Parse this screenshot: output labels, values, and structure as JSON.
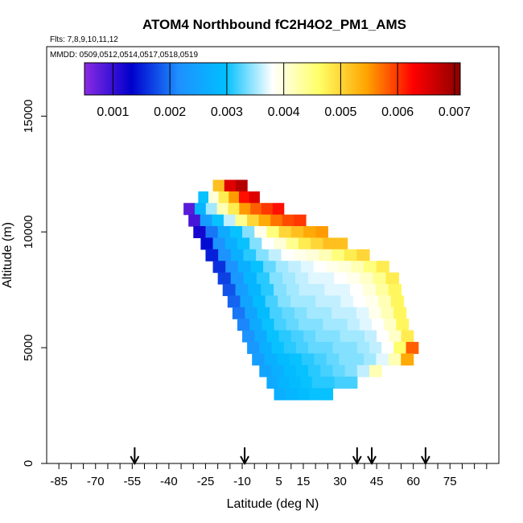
{
  "chart_data": {
    "type": "heatmap",
    "title": "ATOM4 Northbound fC2H4O2_PM1_AMS",
    "subtitle_flights": "Flts: 7,8,9,10,11,12",
    "subtitle_dates": "MMDD: 0509,0512,0514,0517,0518,0519",
    "xlabel": "Latitude (deg N)",
    "ylabel": "Altitude (m)",
    "xlim": [
      -90,
      95
    ],
    "ylim": [
      0,
      18000
    ],
    "x_ticks": [
      -85,
      -70,
      -55,
      -40,
      -25,
      -10,
      5,
      15,
      30,
      45,
      60,
      75
    ],
    "y_ticks": [
      0,
      5000,
      10000,
      15000
    ],
    "colorbar": {
      "min": 0.0005,
      "max": 0.0071,
      "ticks": [
        "0.001",
        "0.002",
        "0.003",
        "0.004",
        "0.005",
        "0.006",
        "0.007"
      ],
      "tick_values": [
        0.001,
        0.002,
        0.003,
        0.004,
        0.005,
        0.006,
        0.007
      ],
      "colors": [
        "#8a2be2",
        "#0000cd",
        "#1e90ff",
        "#00bfff",
        "#ffffff",
        "#ffff66",
        "#ffa500",
        "#ff0000",
        "#8b0000"
      ]
    },
    "arrow_latitudes": [
      -54,
      -9,
      37,
      43,
      65
    ],
    "rows": [
      {
        "alt": 12000,
        "lat_start": -22,
        "lat_end": -8,
        "values": [
          0.0052,
          0.0065,
          0.0068
        ]
      },
      {
        "alt": 11500,
        "lat_start": -28,
        "lat_end": -3,
        "values": [
          0.003,
          0.004,
          0.0048,
          0.0055,
          0.0062,
          0.0065
        ]
      },
      {
        "alt": 11000,
        "lat_start": -34,
        "lat_end": 7,
        "values": [
          0.0008,
          0.0028,
          0.0035,
          0.0042,
          0.0048,
          0.0055,
          0.0058,
          0.006,
          0.0062
        ]
      },
      {
        "alt": 10500,
        "lat_start": -32,
        "lat_end": 16,
        "values": [
          0.0009,
          0.0024,
          0.003,
          0.0036,
          0.0044,
          0.005,
          0.0054,
          0.0057,
          0.0059,
          0.006
        ]
      },
      {
        "alt": 10000,
        "lat_start": -30,
        "lat_end": 25,
        "values": [
          0.0012,
          0.002,
          0.0026,
          0.003,
          0.0034,
          0.0039,
          0.0045,
          0.005,
          0.0052,
          0.0054,
          0.0055
        ]
      },
      {
        "alt": 9500,
        "lat_start": -27,
        "lat_end": 33,
        "values": [
          0.0014,
          0.0022,
          0.0027,
          0.003,
          0.0034,
          0.0038,
          0.004,
          0.0044,
          0.0048,
          0.005,
          0.0052,
          0.0052
        ]
      },
      {
        "alt": 9000,
        "lat_start": -25,
        "lat_end": 42,
        "values": [
          0.0015,
          0.0022,
          0.0027,
          0.0031,
          0.0034,
          0.0036,
          0.0038,
          0.0039,
          0.004,
          0.0042,
          0.0045,
          0.0048,
          0.005
        ]
      },
      {
        "alt": 8500,
        "lat_start": -22,
        "lat_end": 50,
        "values": [
          0.0016,
          0.0022,
          0.0027,
          0.003,
          0.0033,
          0.0035,
          0.0036,
          0.0037,
          0.0038,
          0.0039,
          0.004,
          0.0042,
          0.0045,
          0.0048
        ]
      },
      {
        "alt": 8000,
        "lat_start": -20,
        "lat_end": 54,
        "values": [
          0.0017,
          0.0023,
          0.0028,
          0.0031,
          0.0034,
          0.0035,
          0.0036,
          0.0037,
          0.0037,
          0.0038,
          0.0039,
          0.0041,
          0.0044,
          0.0048
        ]
      },
      {
        "alt": 7500,
        "lat_start": -18,
        "lat_end": 55,
        "values": [
          0.0018,
          0.0024,
          0.0028,
          0.0031,
          0.0034,
          0.0035,
          0.0036,
          0.0036,
          0.0037,
          0.0037,
          0.0038,
          0.004,
          0.0043,
          0.0047
        ]
      },
      {
        "alt": 7000,
        "lat_start": -16,
        "lat_end": 56,
        "values": [
          0.0019,
          0.0025,
          0.0029,
          0.0032,
          0.0034,
          0.0035,
          0.0035,
          0.0036,
          0.0036,
          0.0037,
          0.0038,
          0.0039,
          0.0042,
          0.0047
        ]
      },
      {
        "alt": 6500,
        "lat_start": -14,
        "lat_end": 57,
        "values": [
          0.002,
          0.0025,
          0.0029,
          0.0032,
          0.0033,
          0.0034,
          0.0035,
          0.0035,
          0.0036,
          0.0036,
          0.0037,
          0.0039,
          0.0042,
          0.0047
        ]
      },
      {
        "alt": 6000,
        "lat_start": -12,
        "lat_end": 58,
        "values": [
          0.0021,
          0.0026,
          0.003,
          0.0032,
          0.0033,
          0.0034,
          0.0034,
          0.0035,
          0.0035,
          0.0036,
          0.0037,
          0.0038,
          0.0041,
          0.0047
        ]
      },
      {
        "alt": 5500,
        "lat_start": -10,
        "lat_end": 60,
        "values": [
          0.0022,
          0.0026,
          0.003,
          0.0031,
          0.0032,
          0.0033,
          0.0034,
          0.0034,
          0.0035,
          0.0035,
          0.0036,
          0.0038,
          0.0041,
          0.0048
        ]
      },
      {
        "alt": 5000,
        "lat_start": -8,
        "lat_end": 62,
        "values": [
          0.0023,
          0.0027,
          0.003,
          0.0031,
          0.0032,
          0.0033,
          0.0033,
          0.0034,
          0.0034,
          0.0035,
          0.0036,
          0.0038,
          0.0046,
          0.0058
        ]
      },
      {
        "alt": 4500,
        "lat_start": -6,
        "lat_end": 60,
        "values": [
          0.0024,
          0.0027,
          0.0029,
          0.003,
          0.0031,
          0.0032,
          0.0033,
          0.0034,
          0.0034,
          0.0035,
          0.0037,
          0.0042,
          0.0054
        ]
      },
      {
        "alt": 4000,
        "lat_start": -3,
        "lat_end": 47,
        "values": [
          0.0025,
          0.0027,
          0.0029,
          0.003,
          0.0031,
          0.0032,
          0.0033,
          0.0034,
          0.0036,
          0.0042
        ]
      },
      {
        "alt": 3500,
        "lat_start": 0,
        "lat_end": 37,
        "values": [
          0.0026,
          0.0028,
          0.0029,
          0.003,
          0.0031,
          0.0031,
          0.0032,
          0.0032
        ]
      },
      {
        "alt": 3000,
        "lat_start": 3,
        "lat_end": 27,
        "values": [
          0.0027,
          0.0028,
          0.0029,
          0.003,
          0.003
        ]
      }
    ]
  }
}
